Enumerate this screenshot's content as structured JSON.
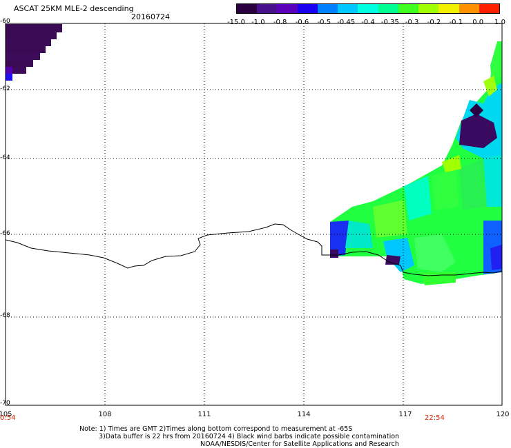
{
  "header": {
    "title": "ASCAT 25KM MLE-2 descending",
    "date": "20160724"
  },
  "colorbar": {
    "labels": [
      "-15.0",
      "-1.0",
      "-0.8",
      "-0.6",
      "-0.5",
      "-0.45",
      "-0.4",
      "-0.35",
      "-0.3",
      "-0.2",
      "-0.1",
      "0.0",
      "1.0"
    ],
    "colors": [
      "#2a0040",
      "#48108a",
      "#5a00b8",
      "#1a00f0",
      "#0080ff",
      "#00c8ff",
      "#00ffe0",
      "#00ff90",
      "#40ff20",
      "#a0ff00",
      "#f0f000",
      "#ff9000",
      "#ff2000"
    ]
  },
  "axes": {
    "lat_labels": [
      "-60",
      "-62",
      "-64",
      "-66",
      "-68",
      "-70"
    ],
    "lon_labels": [
      "105",
      "108",
      "111",
      "114",
      "117",
      "120"
    ]
  },
  "times": {
    "left": "0:54",
    "right": "22:54"
  },
  "notes": {
    "line1": "Note: 1) Times are GMT 2)Times along bottom correspond to measurement at -65S",
    "line2": "3)Data buffer is 22 hrs from 20160724 4) Black wind barbs indicate possible contamination",
    "line3": "NOAA/NESDIS/Center for Satellite Applications and Research"
  }
}
